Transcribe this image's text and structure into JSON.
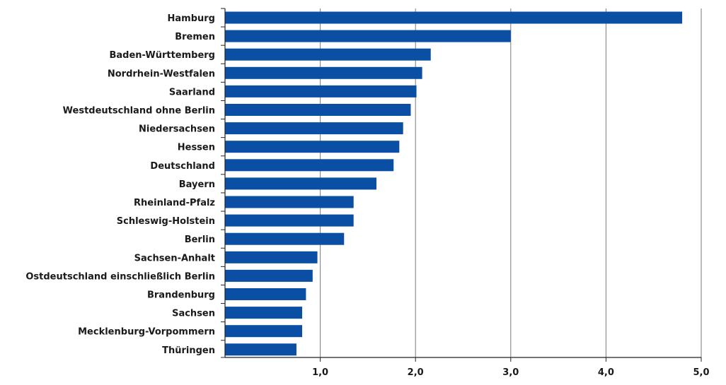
{
  "chart_data": {
    "type": "bar",
    "orientation": "horizontal",
    "title": "",
    "xlabel": "",
    "ylabel": "",
    "categories": [
      "Hamburg",
      "Bremen",
      "Baden-Württemberg",
      "Nordrhein-Westfalen",
      "Saarland",
      "Westdeutschland ohne Berlin",
      "Niedersachsen",
      "Hessen",
      "Deutschland",
      "Bayern",
      "Rheinland-Pfalz",
      "Schleswig-Holstein",
      "Berlin",
      "Sachsen-Anhalt",
      "Ostdeutschland einschließlich Berlin",
      "Brandenburg",
      "Sachsen",
      "Mecklenburg-Vorpommern",
      "Thüringen"
    ],
    "values": [
      4.8,
      3.0,
      2.16,
      2.07,
      2.01,
      1.95,
      1.87,
      1.83,
      1.77,
      1.59,
      1.35,
      1.35,
      1.25,
      0.97,
      0.92,
      0.85,
      0.81,
      0.81,
      0.75
    ],
    "xlim": [
      0,
      5
    ],
    "xticks": [
      1,
      2,
      3,
      4,
      5
    ],
    "xtick_labels": [
      "1,0",
      "2,0",
      "3,0",
      "4,0",
      "5,0"
    ],
    "grid": "vertical",
    "legend": "none",
    "bar_color": "#0a4fa3"
  }
}
